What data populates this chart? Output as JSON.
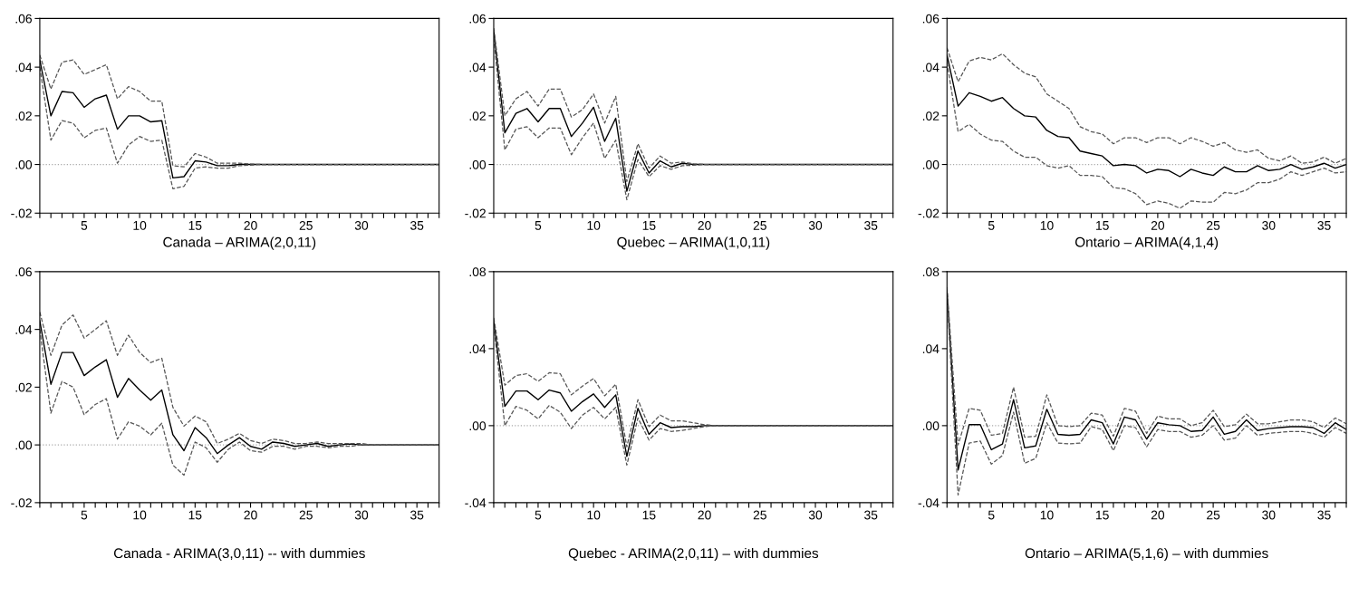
{
  "chart_data": [
    {
      "type": "line",
      "title": "Canada – ARIMA(2,0,11)",
      "x": [
        1,
        2,
        3,
        4,
        5,
        6,
        7,
        8,
        9,
        10,
        11,
        12,
        13,
        14,
        15,
        16,
        17,
        18,
        19,
        20,
        21,
        22,
        23,
        24,
        25,
        26,
        27,
        28,
        29,
        30,
        31,
        32,
        33,
        34,
        35,
        36,
        37
      ],
      "xlim": [
        1,
        37
      ],
      "xticks": [
        {
          "value": 1,
          "label": null
        },
        {
          "value": 2,
          "label": null
        },
        {
          "value": 3,
          "label": null
        },
        {
          "value": 4,
          "label": null
        },
        5,
        {
          "value": 6,
          "label": null
        },
        {
          "value": 7,
          "label": null
        },
        {
          "value": 8,
          "label": null
        },
        {
          "value": 9,
          "label": null
        },
        10,
        {
          "value": 11,
          "label": null
        },
        {
          "value": 12,
          "label": null
        },
        {
          "value": 13,
          "label": null
        },
        {
          "value": 14,
          "label": null
        },
        15,
        {
          "value": 16,
          "label": null
        },
        {
          "value": 17,
          "label": null
        },
        {
          "value": 18,
          "label": null
        },
        {
          "value": 19,
          "label": null
        },
        20,
        {
          "value": 21,
          "label": null
        },
        {
          "value": 22,
          "label": null
        },
        {
          "value": 23,
          "label": null
        },
        {
          "value": 24,
          "label": null
        },
        25,
        {
          "value": 26,
          "label": null
        },
        {
          "value": 27,
          "label": null
        },
        {
          "value": 28,
          "label": null
        },
        {
          "value": 29,
          "label": null
        },
        30,
        {
          "value": 31,
          "label": null
        },
        {
          "value": 32,
          "label": null
        },
        {
          "value": 33,
          "label": null
        },
        {
          "value": 34,
          "label": null
        },
        35,
        {
          "value": 36,
          "label": null
        },
        {
          "value": 37,
          "label": null
        }
      ],
      "ylim": [
        -0.02,
        0.06
      ],
      "yticks": [
        {
          "value": -0.02,
          "label": "-.02"
        },
        {
          "value": 0,
          "label": ".00"
        },
        {
          "value": 0.02,
          "label": ".02"
        },
        {
          "value": 0.04,
          "label": ".04"
        },
        {
          "value": 0.06,
          "label": ".06"
        }
      ],
      "grid": false,
      "ref_lines": [
        {
          "axis": "y",
          "value": 0,
          "color": "#aaaaaa",
          "line_style": "dotted"
        }
      ],
      "series": [
        {
          "color": "#000000",
          "line_style": "solid",
          "values": [
            0.043,
            0.02,
            0.03,
            0.0295,
            0.0235,
            0.027,
            0.0285,
            0.0145,
            0.02,
            0.02,
            0.0175,
            0.018,
            -0.0055,
            -0.005,
            0.0015,
            0.001,
            -0.0005,
            -0.0005,
            0,
            0,
            0,
            0,
            0,
            0,
            0,
            0,
            0,
            0,
            0,
            0,
            0,
            0,
            0,
            0,
            0,
            0,
            0
          ]
        },
        {
          "color": "#555555",
          "line_style": "dashed",
          "values": [
            0.045,
            0.031,
            0.042,
            0.043,
            0.037,
            0.039,
            0.041,
            0.027,
            0.032,
            0.03,
            0.026,
            0.026,
            -0.0005,
            -0.001,
            0.0045,
            0.003,
            0.0005,
            0.0005,
            0.0005,
            0.0002,
            0,
            0,
            0,
            0,
            0,
            0,
            0,
            0,
            0,
            0,
            0,
            0,
            0,
            0,
            0,
            0,
            0
          ]
        },
        {
          "color": "#555555",
          "line_style": "dashed",
          "values": [
            0.04,
            0.01,
            0.018,
            0.017,
            0.011,
            0.014,
            0.015,
            0.0005,
            0.008,
            0.0115,
            0.0095,
            0.01,
            -0.01,
            -0.009,
            -0.0015,
            -0.001,
            -0.0015,
            -0.0015,
            -0.0005,
            -0.0003,
            0,
            0,
            0,
            0,
            0,
            0,
            0,
            0,
            0,
            0,
            0,
            0,
            0,
            0,
            0,
            0,
            0
          ]
        }
      ]
    },
    {
      "type": "line",
      "title": "Quebec – ARIMA(1,0,11)",
      "x": [
        1,
        2,
        3,
        4,
        5,
        6,
        7,
        8,
        9,
        10,
        11,
        12,
        13,
        14,
        15,
        16,
        17,
        18,
        19,
        20,
        21,
        22,
        23,
        24,
        25,
        26,
        27,
        28,
        29,
        30,
        31,
        32,
        33,
        34,
        35,
        36,
        37
      ],
      "xlim": [
        1,
        37
      ],
      "xticks": [
        {
          "value": 1,
          "label": null
        },
        {
          "value": 2,
          "label": null
        },
        {
          "value": 3,
          "label": null
        },
        {
          "value": 4,
          "label": null
        },
        5,
        {
          "value": 6,
          "label": null
        },
        {
          "value": 7,
          "label": null
        },
        {
          "value": 8,
          "label": null
        },
        {
          "value": 9,
          "label": null
        },
        10,
        {
          "value": 11,
          "label": null
        },
        {
          "value": 12,
          "label": null
        },
        {
          "value": 13,
          "label": null
        },
        {
          "value": 14,
          "label": null
        },
        15,
        {
          "value": 16,
          "label": null
        },
        {
          "value": 17,
          "label": null
        },
        {
          "value": 18,
          "label": null
        },
        {
          "value": 19,
          "label": null
        },
        20,
        {
          "value": 21,
          "label": null
        },
        {
          "value": 22,
          "label": null
        },
        {
          "value": 23,
          "label": null
        },
        {
          "value": 24,
          "label": null
        },
        25,
        {
          "value": 26,
          "label": null
        },
        {
          "value": 27,
          "label": null
        },
        {
          "value": 28,
          "label": null
        },
        {
          "value": 29,
          "label": null
        },
        30,
        {
          "value": 31,
          "label": null
        },
        {
          "value": 32,
          "label": null
        },
        {
          "value": 33,
          "label": null
        },
        {
          "value": 34,
          "label": null
        },
        35,
        {
          "value": 36,
          "label": null
        },
        {
          "value": 37,
          "label": null
        }
      ],
      "ylim": [
        -0.02,
        0.06
      ],
      "yticks": [
        {
          "value": -0.02,
          "label": "-.02"
        },
        {
          "value": 0,
          "label": ".00"
        },
        {
          "value": 0.02,
          "label": ".02"
        },
        {
          "value": 0.04,
          "label": ".04"
        },
        {
          "value": 0.06,
          "label": ".06"
        }
      ],
      "grid": false,
      "ref_lines": [
        {
          "axis": "y",
          "value": 0,
          "color": "#aaaaaa",
          "line_style": "dotted"
        }
      ],
      "series": [
        {
          "color": "#000000",
          "line_style": "solid",
          "values": [
            0.055,
            0.013,
            0.021,
            0.023,
            0.0175,
            0.023,
            0.023,
            0.0115,
            0.017,
            0.0235,
            0.0095,
            0.019,
            -0.011,
            0.0055,
            -0.0035,
            0.0015,
            -0.001,
            0.0005,
            0,
            0,
            0,
            0,
            0,
            0,
            0,
            0,
            0,
            0,
            0,
            0,
            0,
            0,
            0,
            0,
            0,
            0,
            0
          ]
        },
        {
          "color": "#555555",
          "line_style": "dashed",
          "values": [
            0.056,
            0.02,
            0.027,
            0.03,
            0.024,
            0.031,
            0.031,
            0.0195,
            0.0225,
            0.029,
            0.017,
            0.028,
            -0.007,
            0.0085,
            -0.0015,
            0.0035,
            0.0005,
            0.001,
            0.0003,
            0,
            0,
            0,
            0,
            0,
            0,
            0,
            0,
            0,
            0,
            0,
            0,
            0,
            0,
            0,
            0,
            0,
            0
          ]
        },
        {
          "color": "#555555",
          "line_style": "dashed",
          "values": [
            0.052,
            0.006,
            0.0145,
            0.0155,
            0.011,
            0.015,
            0.015,
            0.004,
            0.011,
            0.017,
            0.0025,
            0.01,
            -0.0145,
            0.002,
            -0.005,
            -0.0005,
            -0.002,
            -0.0005,
            -0.0003,
            0,
            0,
            0,
            0,
            0,
            0,
            0,
            0,
            0,
            0,
            0,
            0,
            0,
            0,
            0,
            0,
            0,
            0
          ]
        }
      ]
    },
    {
      "type": "line",
      "title": "Ontario – ARIMA(4,1,4)",
      "x": [
        1,
        2,
        3,
        4,
        5,
        6,
        7,
        8,
        9,
        10,
        11,
        12,
        13,
        14,
        15,
        16,
        17,
        18,
        19,
        20,
        21,
        22,
        23,
        24,
        25,
        26,
        27,
        28,
        29,
        30,
        31,
        32,
        33,
        34,
        35,
        36,
        37
      ],
      "xlim": [
        1,
        37
      ],
      "xticks": [
        {
          "value": 1,
          "label": null
        },
        {
          "value": 2,
          "label": null
        },
        {
          "value": 3,
          "label": null
        },
        {
          "value": 4,
          "label": null
        },
        5,
        {
          "value": 6,
          "label": null
        },
        {
          "value": 7,
          "label": null
        },
        {
          "value": 8,
          "label": null
        },
        {
          "value": 9,
          "label": null
        },
        10,
        {
          "value": 11,
          "label": null
        },
        {
          "value": 12,
          "label": null
        },
        {
          "value": 13,
          "label": null
        },
        {
          "value": 14,
          "label": null
        },
        15,
        {
          "value": 16,
          "label": null
        },
        {
          "value": 17,
          "label": null
        },
        {
          "value": 18,
          "label": null
        },
        {
          "value": 19,
          "label": null
        },
        20,
        {
          "value": 21,
          "label": null
        },
        {
          "value": 22,
          "label": null
        },
        {
          "value": 23,
          "label": null
        },
        {
          "value": 24,
          "label": null
        },
        25,
        {
          "value": 26,
          "label": null
        },
        {
          "value": 27,
          "label": null
        },
        {
          "value": 28,
          "label": null
        },
        {
          "value": 29,
          "label": null
        },
        30,
        {
          "value": 31,
          "label": null
        },
        {
          "value": 32,
          "label": null
        },
        {
          "value": 33,
          "label": null
        },
        {
          "value": 34,
          "label": null
        },
        35,
        {
          "value": 36,
          "label": null
        },
        {
          "value": 37,
          "label": null
        }
      ],
      "ylim": [
        -0.02,
        0.06
      ],
      "yticks": [
        {
          "value": -0.02,
          "label": "-.02"
        },
        {
          "value": 0,
          "label": ".00"
        },
        {
          "value": 0.02,
          "label": ".02"
        },
        {
          "value": 0.04,
          "label": ".04"
        },
        {
          "value": 0.06,
          "label": ".06"
        }
      ],
      "grid": false,
      "ref_lines": [
        {
          "axis": "y",
          "value": 0,
          "color": "#aaaaaa",
          "line_style": "dotted"
        }
      ],
      "series": [
        {
          "color": "#000000",
          "line_style": "solid",
          "values": [
            0.045,
            0.024,
            0.0295,
            0.028,
            0.026,
            0.0275,
            0.023,
            0.02,
            0.0195,
            0.014,
            0.0115,
            0.011,
            0.0055,
            0.0045,
            0.0035,
            -0.0005,
            0,
            -0.0005,
            -0.0035,
            -0.002,
            -0.0025,
            -0.005,
            -0.002,
            -0.0035,
            -0.0045,
            -0.001,
            -0.003,
            -0.003,
            -0.0005,
            -0.0025,
            -0.002,
            0,
            -0.002,
            -0.001,
            0.0005,
            -0.0015,
            0
          ]
        },
        {
          "color": "#555555",
          "line_style": "dashed",
          "values": [
            0.048,
            0.034,
            0.0425,
            0.044,
            0.043,
            0.0455,
            0.041,
            0.0375,
            0.036,
            0.029,
            0.026,
            0.023,
            0.0155,
            0.0135,
            0.0125,
            0.0085,
            0.011,
            0.011,
            0.009,
            0.011,
            0.011,
            0.0085,
            0.011,
            0.0095,
            0.0075,
            0.009,
            0.006,
            0.005,
            0.006,
            0.0025,
            0.0015,
            0.0035,
            0.0005,
            0.001,
            0.003,
            0.0005,
            0.0025
          ]
        },
        {
          "color": "#555555",
          "line_style": "dashed",
          "values": [
            0.042,
            0.0135,
            0.0165,
            0.0125,
            0.01,
            0.0095,
            0.0055,
            0.003,
            0.003,
            -0.0005,
            -0.0015,
            -0.0005,
            -0.0045,
            -0.0045,
            -0.005,
            -0.0095,
            -0.01,
            -0.012,
            -0.0165,
            -0.015,
            -0.016,
            -0.018,
            -0.015,
            -0.0155,
            -0.0155,
            -0.0115,
            -0.012,
            -0.0105,
            -0.0075,
            -0.0075,
            -0.006,
            -0.003,
            -0.0045,
            -0.003,
            -0.0015,
            -0.0035,
            -0.003
          ]
        }
      ]
    },
    {
      "type": "line",
      "title": "Canada - ARIMA(3,0,11) -- with dummies",
      "x": [
        1,
        2,
        3,
        4,
        5,
        6,
        7,
        8,
        9,
        10,
        11,
        12,
        13,
        14,
        15,
        16,
        17,
        18,
        19,
        20,
        21,
        22,
        23,
        24,
        25,
        26,
        27,
        28,
        29,
        30,
        31,
        32,
        33,
        34,
        35,
        36,
        37
      ],
      "xlim": [
        1,
        37
      ],
      "xticks": [
        {
          "value": 1,
          "label": null
        },
        {
          "value": 2,
          "label": null
        },
        {
          "value": 3,
          "label": null
        },
        {
          "value": 4,
          "label": null
        },
        5,
        {
          "value": 6,
          "label": null
        },
        {
          "value": 7,
          "label": null
        },
        {
          "value": 8,
          "label": null
        },
        {
          "value": 9,
          "label": null
        },
        10,
        {
          "value": 11,
          "label": null
        },
        {
          "value": 12,
          "label": null
        },
        {
          "value": 13,
          "label": null
        },
        {
          "value": 14,
          "label": null
        },
        15,
        {
          "value": 16,
          "label": null
        },
        {
          "value": 17,
          "label": null
        },
        {
          "value": 18,
          "label": null
        },
        {
          "value": 19,
          "label": null
        },
        20,
        {
          "value": 21,
          "label": null
        },
        {
          "value": 22,
          "label": null
        },
        {
          "value": 23,
          "label": null
        },
        {
          "value": 24,
          "label": null
        },
        25,
        {
          "value": 26,
          "label": null
        },
        {
          "value": 27,
          "label": null
        },
        {
          "value": 28,
          "label": null
        },
        {
          "value": 29,
          "label": null
        },
        30,
        {
          "value": 31,
          "label": null
        },
        {
          "value": 32,
          "label": null
        },
        {
          "value": 33,
          "label": null
        },
        {
          "value": 34,
          "label": null
        },
        35,
        {
          "value": 36,
          "label": null
        },
        {
          "value": 37,
          "label": null
        }
      ],
      "ylim": [
        -0.02,
        0.06
      ],
      "yticks": [
        {
          "value": -0.02,
          "label": "-.02"
        },
        {
          "value": 0,
          "label": ".00"
        },
        {
          "value": 0.02,
          "label": ".02"
        },
        {
          "value": 0.04,
          "label": ".04"
        },
        {
          "value": 0.06,
          "label": ".06"
        }
      ],
      "grid": false,
      "ref_lines": [
        {
          "axis": "y",
          "value": 0,
          "color": "#aaaaaa",
          "line_style": "dotted"
        }
      ],
      "series": [
        {
          "color": "#000000",
          "line_style": "solid",
          "values": [
            0.043,
            0.021,
            0.032,
            0.032,
            0.024,
            0.027,
            0.0295,
            0.0165,
            0.023,
            0.019,
            0.0155,
            0.019,
            0.0035,
            -0.002,
            0.006,
            0.0025,
            -0.003,
            0,
            0.0025,
            -0.0005,
            -0.0015,
            0.001,
            0.0005,
            -0.0005,
            0,
            0.0005,
            -0.0005,
            0,
            0.0003,
            0,
            0,
            0,
            0,
            0,
            0,
            0,
            0
          ]
        },
        {
          "color": "#555555",
          "line_style": "dashed",
          "values": [
            0.046,
            0.031,
            0.0415,
            0.045,
            0.037,
            0.04,
            0.043,
            0.031,
            0.038,
            0.032,
            0.0285,
            0.03,
            0.013,
            0.0065,
            0.01,
            0.008,
            0.0005,
            0.002,
            0.004,
            0.0015,
            0.0005,
            0.002,
            0.0015,
            0.0005,
            0.0005,
            0.001,
            0.0005,
            0.0005,
            0.0005,
            0.0005,
            0,
            0,
            0,
            0,
            0,
            0,
            0
          ]
        },
        {
          "color": "#555555",
          "line_style": "dashed",
          "values": [
            0.04,
            0.011,
            0.022,
            0.02,
            0.0105,
            0.014,
            0.016,
            0.002,
            0.008,
            0.0065,
            0.0035,
            0.0075,
            -0.007,
            -0.0105,
            0.001,
            -0.001,
            -0.006,
            -0.0015,
            0.001,
            -0.002,
            -0.0025,
            -0.0005,
            -0.0005,
            -0.0015,
            -0.0005,
            -0.0005,
            -0.001,
            -0.0005,
            -0.0005,
            0,
            0,
            0,
            0,
            0,
            0,
            0,
            0
          ]
        }
      ]
    },
    {
      "type": "line",
      "title": "Quebec - ARIMA(2,0,11) – with dummies",
      "x": [
        1,
        2,
        3,
        4,
        5,
        6,
        7,
        8,
        9,
        10,
        11,
        12,
        13,
        14,
        15,
        16,
        17,
        18,
        19,
        20,
        21,
        22,
        23,
        24,
        25,
        26,
        27,
        28,
        29,
        30,
        31,
        32,
        33,
        34,
        35,
        36,
        37
      ],
      "xlim": [
        1,
        37
      ],
      "xticks": [
        {
          "value": 1,
          "label": null
        },
        {
          "value": 2,
          "label": null
        },
        {
          "value": 3,
          "label": null
        },
        {
          "value": 4,
          "label": null
        },
        5,
        {
          "value": 6,
          "label": null
        },
        {
          "value": 7,
          "label": null
        },
        {
          "value": 8,
          "label": null
        },
        {
          "value": 9,
          "label": null
        },
        10,
        {
          "value": 11,
          "label": null
        },
        {
          "value": 12,
          "label": null
        },
        {
          "value": 13,
          "label": null
        },
        {
          "value": 14,
          "label": null
        },
        15,
        {
          "value": 16,
          "label": null
        },
        {
          "value": 17,
          "label": null
        },
        {
          "value": 18,
          "label": null
        },
        {
          "value": 19,
          "label": null
        },
        20,
        {
          "value": 21,
          "label": null
        },
        {
          "value": 22,
          "label": null
        },
        {
          "value": 23,
          "label": null
        },
        {
          "value": 24,
          "label": null
        },
        25,
        {
          "value": 26,
          "label": null
        },
        {
          "value": 27,
          "label": null
        },
        {
          "value": 28,
          "label": null
        },
        {
          "value": 29,
          "label": null
        },
        30,
        {
          "value": 31,
          "label": null
        },
        {
          "value": 32,
          "label": null
        },
        {
          "value": 33,
          "label": null
        },
        {
          "value": 34,
          "label": null
        },
        35,
        {
          "value": 36,
          "label": null
        },
        {
          "value": 37,
          "label": null
        }
      ],
      "ylim": [
        -0.04,
        0.08
      ],
      "yticks": [
        {
          "value": -0.04,
          "label": "-.04"
        },
        {
          "value": 0,
          "label": ".00"
        },
        {
          "value": 0.04,
          "label": ".04"
        },
        {
          "value": 0.08,
          "label": ".08"
        }
      ],
      "grid": false,
      "ref_lines": [
        {
          "axis": "y",
          "value": 0,
          "color": "#aaaaaa",
          "line_style": "dotted"
        }
      ],
      "series": [
        {
          "color": "#000000",
          "line_style": "solid",
          "values": [
            0.054,
            0.01,
            0.018,
            0.018,
            0.0135,
            0.0185,
            0.017,
            0.0075,
            0.0125,
            0.0165,
            0.0095,
            0.016,
            -0.016,
            0.009,
            -0.0045,
            0.0015,
            -0.001,
            -0.0005,
            -0.0005,
            0,
            0,
            0,
            0,
            0,
            0,
            0,
            0,
            0,
            0,
            0,
            0,
            0,
            0,
            0,
            0,
            0,
            0
          ]
        },
        {
          "color": "#555555",
          "line_style": "dashed",
          "values": [
            0.056,
            0.021,
            0.026,
            0.027,
            0.023,
            0.0275,
            0.027,
            0.016,
            0.0205,
            0.0245,
            0.0155,
            0.0215,
            -0.011,
            0.0135,
            -0.0005,
            0.0055,
            0.0025,
            0.0025,
            0.0015,
            0.0005,
            0,
            0,
            0,
            0,
            0,
            0,
            0,
            0,
            0,
            0,
            0,
            0,
            0,
            0,
            0,
            0,
            0
          ]
        },
        {
          "color": "#555555",
          "line_style": "dashed",
          "values": [
            0.052,
            0,
            0.01,
            0.008,
            0.0035,
            0.0105,
            0.007,
            -0.0015,
            0.0055,
            0.0095,
            0.0035,
            0.0095,
            -0.0205,
            0.004,
            -0.0075,
            -0.0015,
            -0.003,
            -0.0025,
            -0.0015,
            -0.0005,
            0,
            0,
            0,
            0,
            0,
            0,
            0,
            0,
            0,
            0,
            0,
            0,
            0,
            0,
            0,
            0,
            0
          ]
        }
      ]
    },
    {
      "type": "line",
      "title": "Ontario – ARIMA(5,1,6) – with dummies",
      "x": [
        1,
        2,
        3,
        4,
        5,
        6,
        7,
        8,
        9,
        10,
        11,
        12,
        13,
        14,
        15,
        16,
        17,
        18,
        19,
        20,
        21,
        22,
        23,
        24,
        25,
        26,
        27,
        28,
        29,
        30,
        31,
        32,
        33,
        34,
        35,
        36,
        37
      ],
      "xlim": [
        1,
        37
      ],
      "xticks": [
        {
          "value": 1,
          "label": null
        },
        {
          "value": 2,
          "label": null
        },
        {
          "value": 3,
          "label": null
        },
        {
          "value": 4,
          "label": null
        },
        5,
        {
          "value": 6,
          "label": null
        },
        {
          "value": 7,
          "label": null
        },
        {
          "value": 8,
          "label": null
        },
        {
          "value": 9,
          "label": null
        },
        10,
        {
          "value": 11,
          "label": null
        },
        {
          "value": 12,
          "label": null
        },
        {
          "value": 13,
          "label": null
        },
        {
          "value": 14,
          "label": null
        },
        15,
        {
          "value": 16,
          "label": null
        },
        {
          "value": 17,
          "label": null
        },
        {
          "value": 18,
          "label": null
        },
        {
          "value": 19,
          "label": null
        },
        20,
        {
          "value": 21,
          "label": null
        },
        {
          "value": 22,
          "label": null
        },
        {
          "value": 23,
          "label": null
        },
        {
          "value": 24,
          "label": null
        },
        25,
        {
          "value": 26,
          "label": null
        },
        {
          "value": 27,
          "label": null
        },
        {
          "value": 28,
          "label": null
        },
        {
          "value": 29,
          "label": null
        },
        30,
        {
          "value": 31,
          "label": null
        },
        {
          "value": 32,
          "label": null
        },
        {
          "value": 33,
          "label": null
        },
        {
          "value": 34,
          "label": null
        },
        35,
        {
          "value": 36,
          "label": null
        },
        {
          "value": 37,
          "label": null
        }
      ],
      "ylim": [
        -0.04,
        0.08
      ],
      "yticks": [
        {
          "value": -0.04,
          "label": "-.04"
        },
        {
          "value": 0,
          "label": ".00"
        },
        {
          "value": 0.04,
          "label": ".04"
        },
        {
          "value": 0.08,
          "label": ".08"
        }
      ],
      "grid": false,
      "ref_lines": [
        {
          "axis": "y",
          "value": 0,
          "color": "#aaaaaa",
          "line_style": "dotted"
        }
      ],
      "series": [
        {
          "color": "#000000",
          "line_style": "solid",
          "values": [
            0.07,
            -0.023,
            0.0005,
            0.0005,
            -0.0125,
            -0.0095,
            0.0135,
            -0.0115,
            -0.0105,
            0.0085,
            -0.0045,
            -0.005,
            -0.0045,
            0.003,
            0.0015,
            -0.0095,
            0.0045,
            0.003,
            -0.007,
            0.0015,
            0.0005,
            0,
            -0.003,
            -0.0025,
            0.0045,
            -0.0045,
            -0.003,
            0.003,
            -0.0025,
            -0.0015,
            -0.001,
            -0.0005,
            -0.0005,
            -0.001,
            -0.004,
            0.0015,
            -0.002
          ]
        },
        {
          "color": "#555555",
          "line_style": "dashed",
          "values": [
            0.072,
            -0.01,
            0.009,
            0.008,
            -0.005,
            -0.004,
            0.02,
            -0.006,
            -0.0055,
            0.016,
            0,
            -0.0005,
            0,
            0.0065,
            0.0055,
            -0.0055,
            0.009,
            0.0075,
            -0.004,
            0.005,
            0.0035,
            0.0035,
            0,
            0.0015,
            0.008,
            -0.0005,
            0.0005,
            0.006,
            0.001,
            0.001,
            0.002,
            0.003,
            0.003,
            0.002,
            -0.001,
            0.004,
            0.001
          ]
        },
        {
          "color": "#555555",
          "line_style": "dashed",
          "values": [
            0.068,
            -0.036,
            -0.009,
            -0.008,
            -0.02,
            -0.0155,
            0.007,
            -0.0195,
            -0.017,
            0.0015,
            -0.009,
            -0.0095,
            -0.009,
            -0.0005,
            -0.002,
            -0.013,
            0,
            -0.001,
            -0.011,
            -0.002,
            -0.003,
            -0.003,
            -0.006,
            -0.005,
            0,
            -0.0075,
            -0.0065,
            0,
            -0.005,
            -0.004,
            -0.0035,
            -0.003,
            -0.003,
            -0.004,
            -0.006,
            -0.001,
            -0.004
          ]
        }
      ]
    }
  ]
}
